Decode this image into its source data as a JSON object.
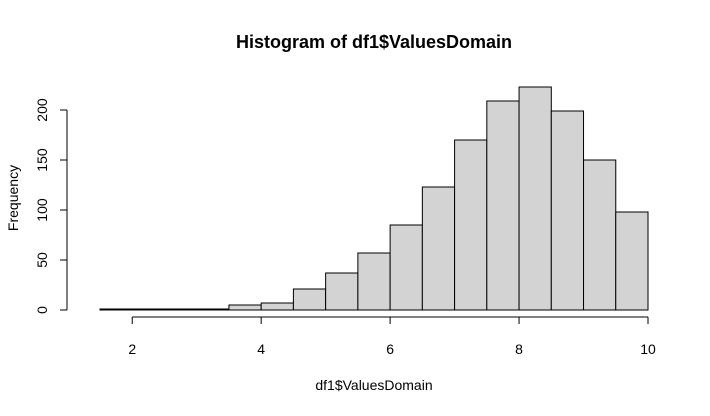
{
  "chart_data": {
    "type": "bar",
    "title": "Histogram of df1$ValuesDomain",
    "xlabel": "df1$ValuesDomain",
    "ylabel": "Frequency",
    "bin_edges": [
      1.5,
      2.0,
      2.5,
      3.0,
      3.5,
      4.0,
      4.5,
      5.0,
      5.5,
      6.0,
      6.5,
      7.0,
      7.5,
      8.0,
      8.5,
      9.0,
      9.5,
      10.0
    ],
    "values": [
      1,
      1,
      1,
      1,
      5,
      7,
      21,
      37,
      57,
      85,
      123,
      170,
      209,
      223,
      199,
      150,
      98
    ],
    "xticks": [
      2,
      4,
      6,
      8,
      10
    ],
    "yticks": [
      0,
      50,
      100,
      150,
      200
    ],
    "xlim": [
      1.5,
      10
    ],
    "ylim": [
      0,
      223
    ],
    "colors": {
      "bar_fill": "#d3d3d3",
      "bar_stroke": "#000000"
    },
    "grid": false,
    "legend": "none"
  }
}
